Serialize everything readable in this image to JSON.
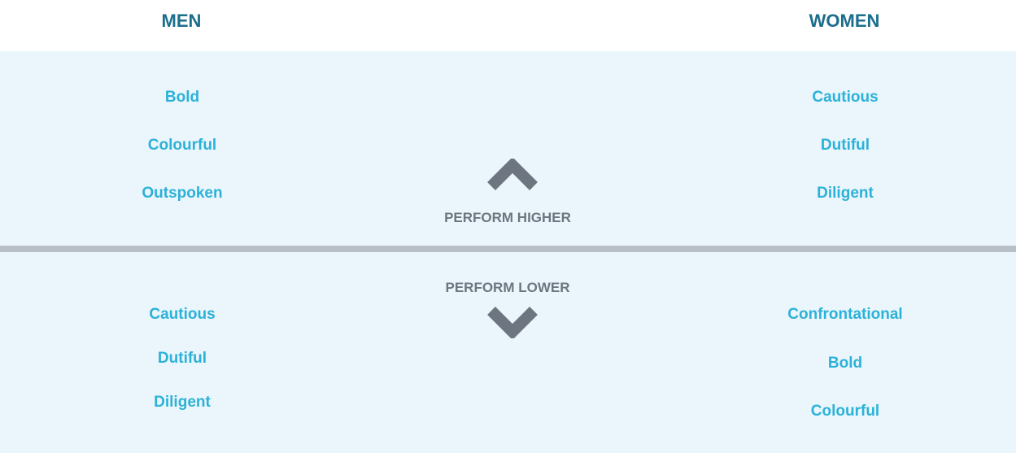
{
  "headers": {
    "men": "MEN",
    "women": "WOMEN"
  },
  "higher": {
    "label": "PERFORM HIGHER",
    "men": [
      "Bold",
      "Colourful",
      "Outspoken"
    ],
    "women": [
      "Cautious",
      "Dutiful",
      "Diligent"
    ]
  },
  "lower": {
    "label": "PERFORM LOWER",
    "men": [
      "Cautious",
      "Dutiful",
      "Diligent"
    ],
    "women": [
      "Confrontational",
      "Bold",
      "Colourful"
    ]
  }
}
